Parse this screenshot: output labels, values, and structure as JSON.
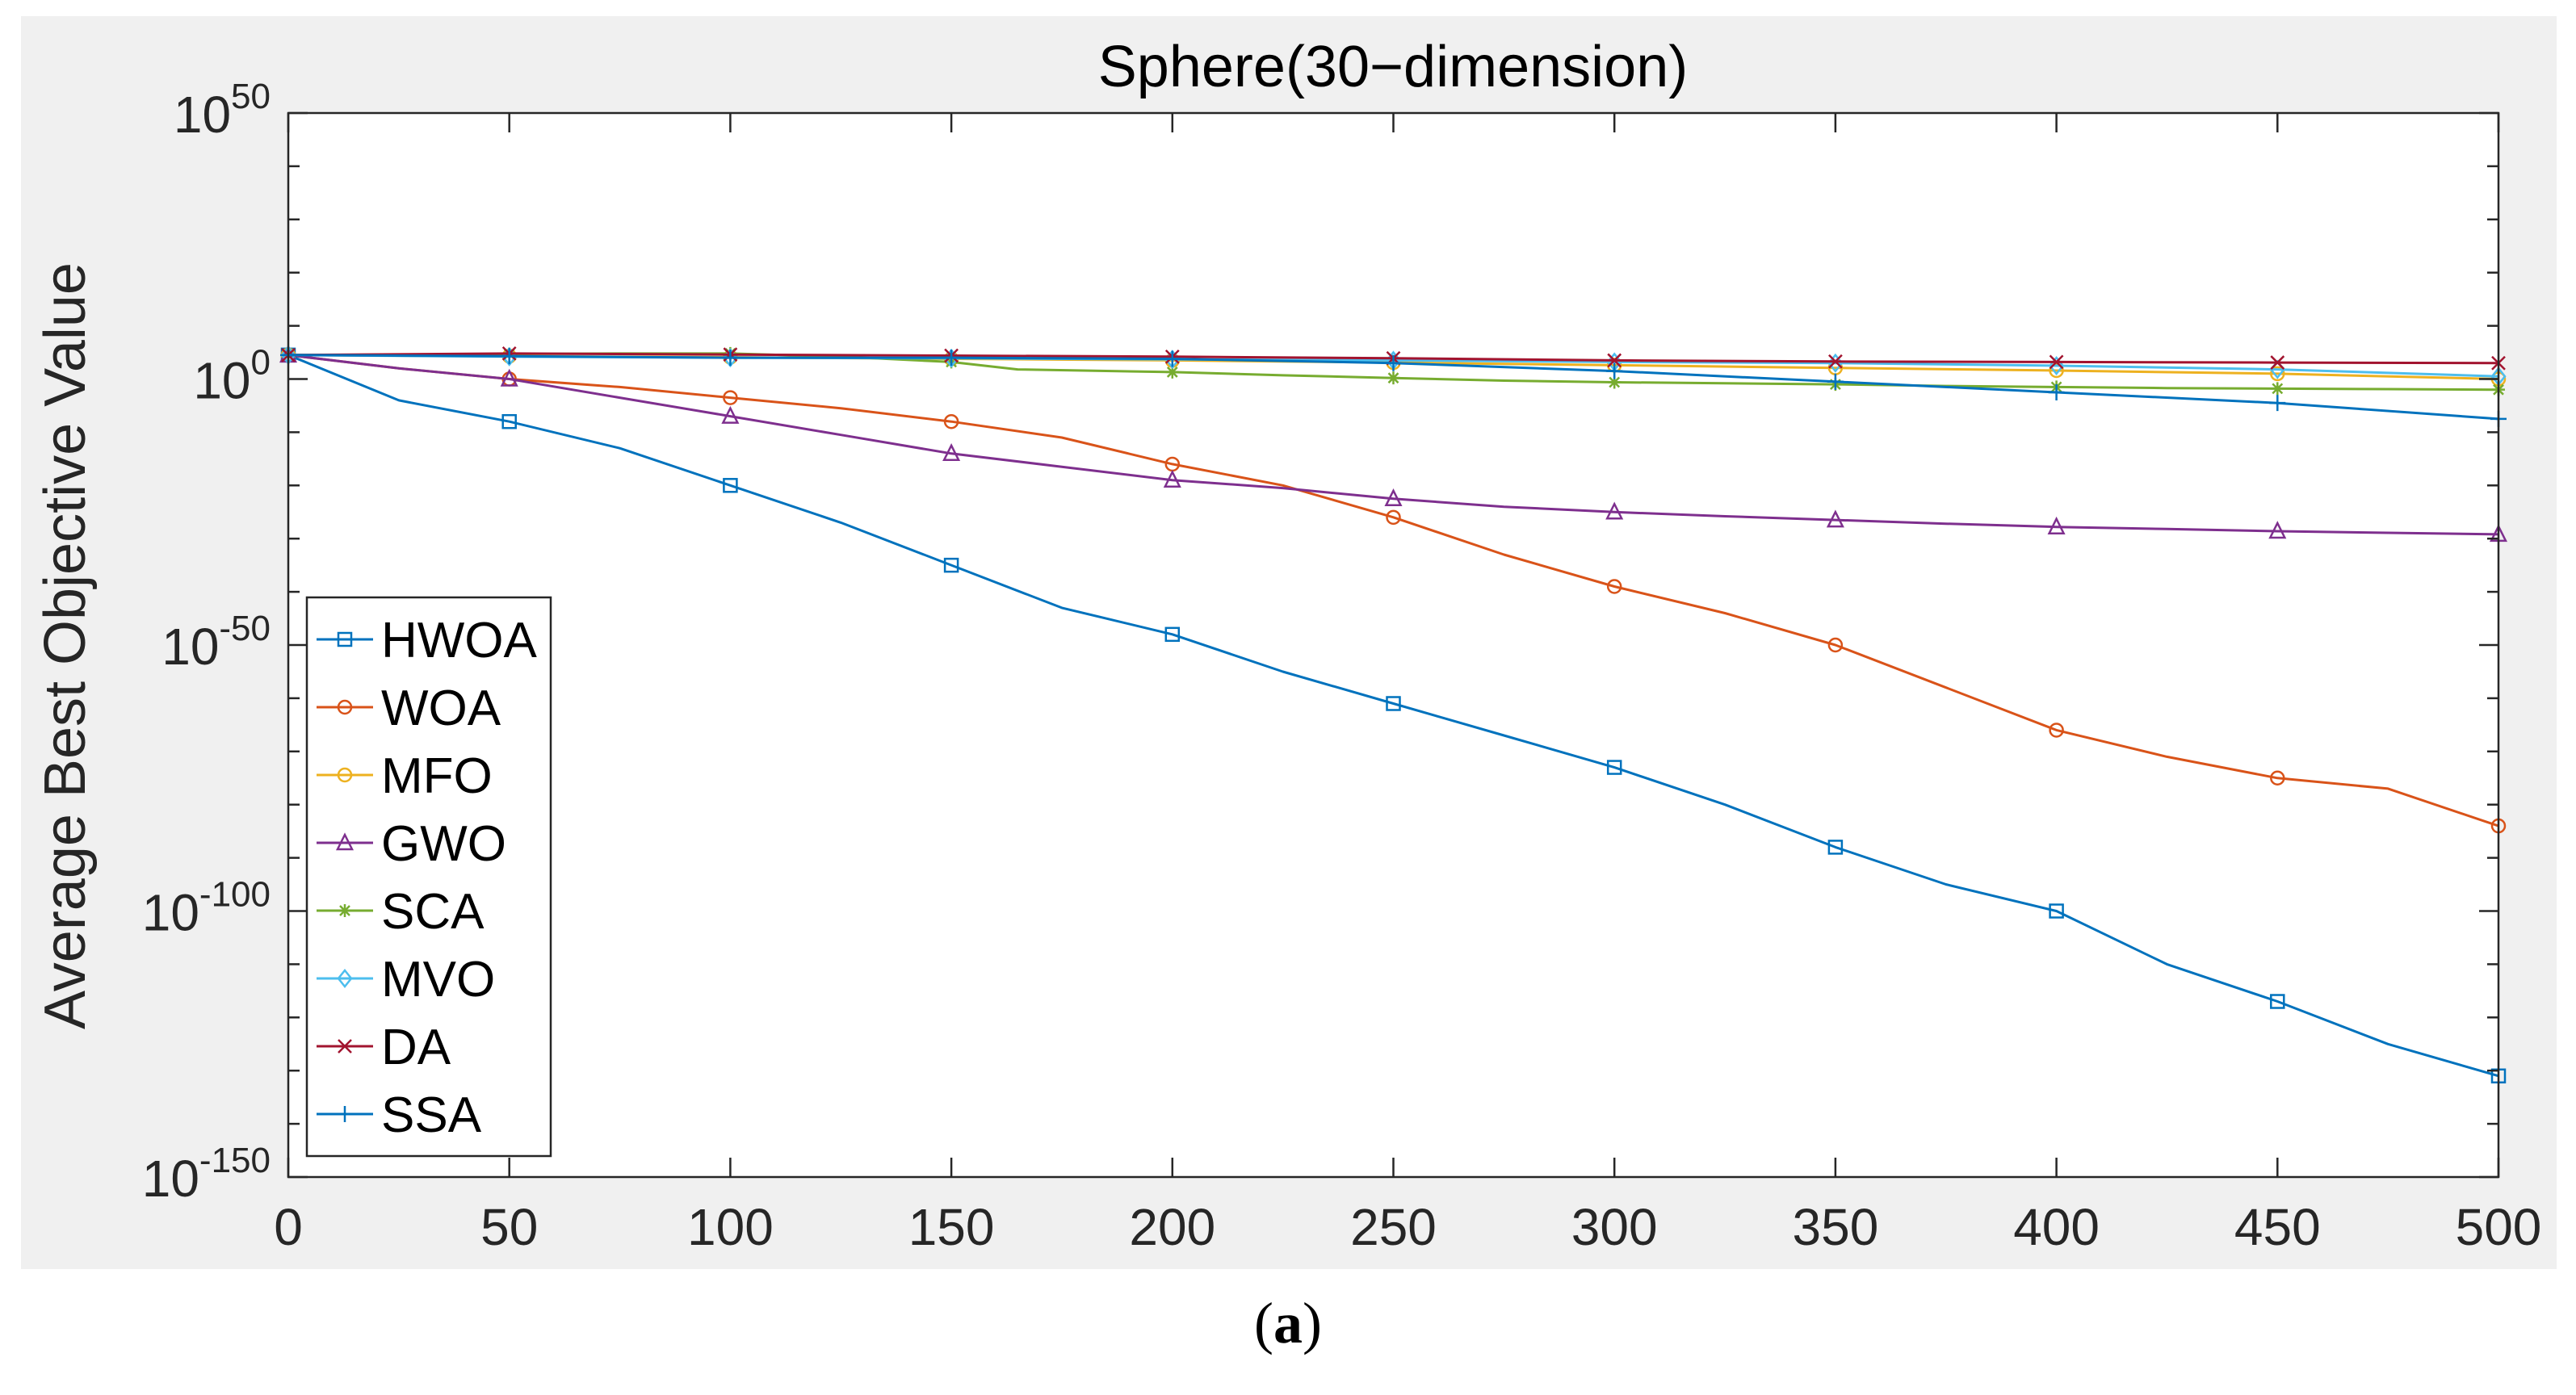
{
  "figure_caption": {
    "open": "(",
    "label": "a",
    "close": ")"
  },
  "chart_data": {
    "type": "line",
    "title": "Sphere(30−dimension)",
    "xlabel": "",
    "ylabel": "Average Best Objective Value",
    "xlim": [
      0,
      500
    ],
    "ylim_log10": [
      -150,
      50
    ],
    "y_scale": "log",
    "grid": false,
    "legend_position": "bottom-left",
    "x_ticks": [
      0,
      50,
      100,
      150,
      200,
      250,
      300,
      350,
      400,
      450,
      500
    ],
    "y_ticks": [
      {
        "exp": 50,
        "base": "10",
        "sup": "50"
      },
      {
        "exp": 0,
        "base": "10",
        "sup": "0"
      },
      {
        "exp": -50,
        "base": "10",
        "sup": "-50"
      },
      {
        "exp": -100,
        "base": "10",
        "sup": "-100"
      },
      {
        "exp": -150,
        "base": "10",
        "sup": "-150"
      }
    ],
    "series": [
      {
        "name": "HWOA",
        "color": "#0072BD",
        "marker": "square",
        "x": [
          0,
          25,
          50,
          75,
          100,
          125,
          150,
          175,
          200,
          225,
          250,
          275,
          300,
          325,
          350,
          375,
          400,
          425,
          450,
          475,
          500
        ],
        "log10_y": [
          4.5,
          -4,
          -8,
          -13,
          -20,
          -27,
          -35,
          -43,
          -48,
          -55,
          -61,
          -67,
          -73,
          -80,
          -88,
          -95,
          -100,
          -110,
          -117,
          -125,
          -131
        ]
      },
      {
        "name": "WOA",
        "color": "#D95319",
        "marker": "circle",
        "x": [
          0,
          25,
          50,
          75,
          100,
          125,
          150,
          175,
          200,
          225,
          250,
          275,
          300,
          325,
          350,
          375,
          400,
          425,
          450,
          475,
          500
        ],
        "log10_y": [
          4.5,
          2,
          0,
          -1.5,
          -3.5,
          -5.5,
          -8,
          -11,
          -16,
          -20,
          -26,
          -33,
          -39,
          -44,
          -50,
          -58,
          -66,
          -71,
          -75,
          -77,
          -84
        ]
      },
      {
        "name": "MFO",
        "color": "#EDB120",
        "marker": "circle",
        "x": [
          0,
          50,
          100,
          150,
          200,
          250,
          300,
          350,
          400,
          450,
          500
        ],
        "log10_y": [
          4.5,
          4.3,
          4.1,
          3.8,
          3.5,
          3.1,
          2.6,
          2.1,
          1.6,
          1.0,
          0.0
        ]
      },
      {
        "name": "GWO",
        "color": "#7E2F8E",
        "marker": "triangle",
        "x": [
          0,
          25,
          50,
          75,
          100,
          125,
          150,
          175,
          200,
          225,
          250,
          275,
          300,
          325,
          350,
          375,
          400,
          425,
          450,
          475,
          500
        ],
        "log10_y": [
          4.5,
          2,
          0,
          -3.5,
          -7,
          -10.5,
          -14,
          -16.5,
          -19,
          -20.5,
          -22.5,
          -24,
          -25,
          -25.8,
          -26.5,
          -27.2,
          -27.8,
          -28.2,
          -28.6,
          -28.9,
          -29.2
        ]
      },
      {
        "name": "SCA",
        "color": "#77AC30",
        "marker": "asterisk",
        "x": [
          0,
          25,
          50,
          75,
          100,
          125,
          150,
          165,
          200,
          225,
          250,
          275,
          300,
          325,
          350,
          375,
          400,
          425,
          450,
          475,
          500
        ],
        "log10_y": [
          4.5,
          4.6,
          4.7,
          4.8,
          4.8,
          4.2,
          3.2,
          1.8,
          1.3,
          0.7,
          0.2,
          -0.3,
          -0.6,
          -0.8,
          -1,
          -1.3,
          -1.5,
          -1.7,
          -1.8,
          -1.9,
          -2
        ]
      },
      {
        "name": "MVO",
        "color": "#4DBEEE",
        "marker": "diamond",
        "x": [
          0,
          50,
          100,
          150,
          200,
          250,
          300,
          350,
          400,
          450,
          500
        ],
        "log10_y": [
          4.5,
          4.2,
          4.0,
          3.9,
          3.7,
          3.5,
          3.2,
          3.0,
          2.5,
          1.8,
          0.5
        ]
      },
      {
        "name": "DA",
        "color": "#A2142F",
        "marker": "x",
        "x": [
          0,
          50,
          100,
          150,
          200,
          250,
          300,
          350,
          400,
          450,
          500
        ],
        "log10_y": [
          4.5,
          4.8,
          4.6,
          4.4,
          4.2,
          3.9,
          3.5,
          3.3,
          3.2,
          3.1,
          3.0
        ]
      },
      {
        "name": "SSA",
        "color": "#0072BD",
        "marker": "plus",
        "x": [
          0,
          50,
          100,
          150,
          200,
          250,
          300,
          350,
          400,
          450,
          500
        ],
        "log10_y": [
          4.5,
          4.3,
          4.0,
          4.0,
          3.8,
          3.0,
          1.5,
          -0.5,
          -2.5,
          -4.5,
          -7.5
        ]
      }
    ]
  }
}
